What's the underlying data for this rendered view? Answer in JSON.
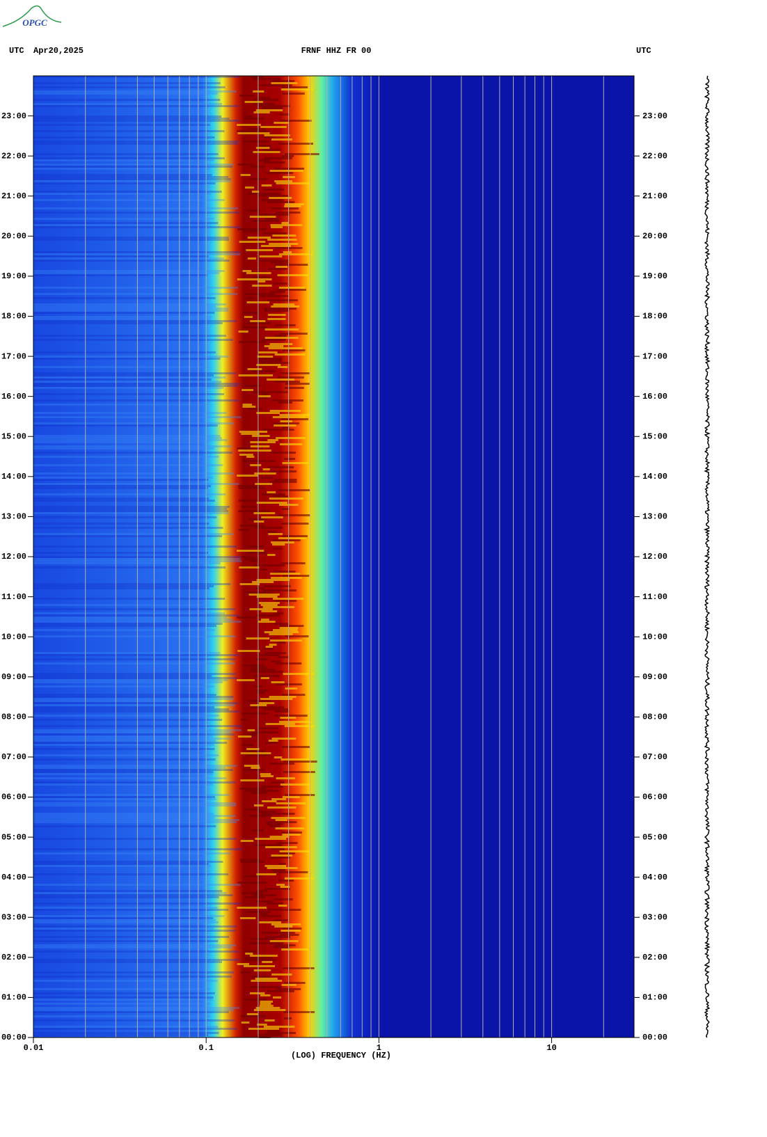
{
  "logo": "OPGC",
  "chart_data": {
    "type": "spectrogram",
    "timezone_left": "UTC",
    "date": "Apr20,2025",
    "title": "FRNF HHZ FR 00",
    "timezone_right": "UTC",
    "xlabel": "(LOG) FREQUENCY (HZ)",
    "xscale": "log",
    "xlim": [
      0.01,
      30
    ],
    "xticks": [
      0.01,
      0.1,
      1,
      10
    ],
    "xgrid": [
      0.02,
      0.03,
      0.04,
      0.05,
      0.06,
      0.07,
      0.08,
      0.09,
      0.1,
      0.2,
      0.3,
      0.4,
      0.5,
      0.6,
      0.7,
      0.8,
      0.9,
      1,
      2,
      3,
      4,
      5,
      6,
      7,
      8,
      9,
      10,
      20
    ],
    "ylim": [
      0,
      24
    ],
    "yticks": [
      {
        "value": 0,
        "label": "00:00"
      },
      {
        "value": 1,
        "label": "01:00"
      },
      {
        "value": 2,
        "label": "02:00"
      },
      {
        "value": 3,
        "label": "03:00"
      },
      {
        "value": 4,
        "label": "04:00"
      },
      {
        "value": 5,
        "label": "05:00"
      },
      {
        "value": 6,
        "label": "06:00"
      },
      {
        "value": 7,
        "label": "07:00"
      },
      {
        "value": 8,
        "label": "08:00"
      },
      {
        "value": 9,
        "label": "09:00"
      },
      {
        "value": 10,
        "label": "10:00"
      },
      {
        "value": 11,
        "label": "11:00"
      },
      {
        "value": 12,
        "label": "12:00"
      },
      {
        "value": 13,
        "label": "13:00"
      },
      {
        "value": 14,
        "label": "14:00"
      },
      {
        "value": 15,
        "label": "15:00"
      },
      {
        "value": 16,
        "label": "16:00"
      },
      {
        "value": 17,
        "label": "17:00"
      },
      {
        "value": 18,
        "label": "18:00"
      },
      {
        "value": 19,
        "label": "19:00"
      },
      {
        "value": 20,
        "label": "20:00"
      },
      {
        "value": 21,
        "label": "21:00"
      },
      {
        "value": 22,
        "label": "22:00"
      },
      {
        "value": 23,
        "label": "23:00"
      }
    ]
  }
}
